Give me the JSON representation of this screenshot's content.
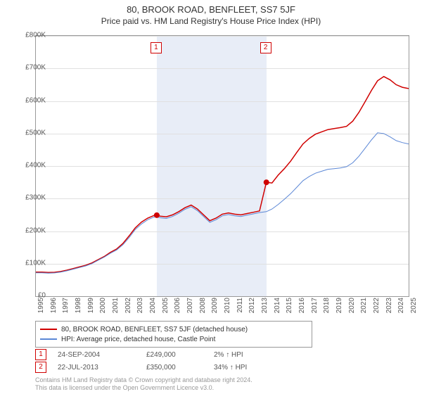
{
  "title": {
    "main": "80, BROOK ROAD, BENFLEET, SS7 5JF",
    "sub": "Price paid vs. HM Land Registry's House Price Index (HPI)"
  },
  "chart": {
    "type": "line",
    "x_start_year": 1995,
    "x_end_year": 2025,
    "y_min": 0,
    "y_max": 800000,
    "y_tick_step": 100000,
    "y_prefix": "£",
    "y_ticks": [
      "£0",
      "£100K",
      "£200K",
      "£300K",
      "£400K",
      "£500K",
      "£600K",
      "£700K",
      "£800K"
    ],
    "x_ticks": [
      "1995",
      "1996",
      "1997",
      "1998",
      "1999",
      "2000",
      "2001",
      "2002",
      "2003",
      "2004",
      "2005",
      "2006",
      "2007",
      "2008",
      "2009",
      "2010",
      "2011",
      "2012",
      "2013",
      "2014",
      "2015",
      "2016",
      "2017",
      "2018",
      "2019",
      "2020",
      "2021",
      "2022",
      "2023",
      "2024",
      "2025"
    ],
    "band_color": "#e8edf7",
    "grid_color": "#e0e0e0",
    "background_color": "#ffffff",
    "series": [
      {
        "name": "price_paid",
        "label": "80, BROOK ROAD, BENFLEET, SS7 5JF (detached house)",
        "color": "#d00000",
        "width": 1.5,
        "points": [
          [
            1995.0,
            74000
          ],
          [
            1995.5,
            74000
          ],
          [
            1996.0,
            73000
          ],
          [
            1996.5,
            73500
          ],
          [
            1997.0,
            76000
          ],
          [
            1997.5,
            80000
          ],
          [
            1998.0,
            85000
          ],
          [
            1998.5,
            90000
          ],
          [
            1999.0,
            95000
          ],
          [
            1999.5,
            102000
          ],
          [
            2000.0,
            112000
          ],
          [
            2000.5,
            122000
          ],
          [
            2001.0,
            135000
          ],
          [
            2001.5,
            145000
          ],
          [
            2002.0,
            162000
          ],
          [
            2002.5,
            185000
          ],
          [
            2003.0,
            210000
          ],
          [
            2003.5,
            228000
          ],
          [
            2004.0,
            240000
          ],
          [
            2004.5,
            248000
          ],
          [
            2004.73,
            249000
          ],
          [
            2005.0,
            246000
          ],
          [
            2005.5,
            244000
          ],
          [
            2006.0,
            250000
          ],
          [
            2006.5,
            260000
          ],
          [
            2007.0,
            272000
          ],
          [
            2007.5,
            280000
          ],
          [
            2008.0,
            268000
          ],
          [
            2008.5,
            250000
          ],
          [
            2009.0,
            232000
          ],
          [
            2009.5,
            240000
          ],
          [
            2010.0,
            252000
          ],
          [
            2010.5,
            256000
          ],
          [
            2011.0,
            252000
          ],
          [
            2011.5,
            250000
          ],
          [
            2012.0,
            254000
          ],
          [
            2012.5,
            258000
          ],
          [
            2013.0,
            262000
          ],
          [
            2013.55,
            350000
          ],
          [
            2014.0,
            348000
          ],
          [
            2014.5,
            372000
          ],
          [
            2015.0,
            392000
          ],
          [
            2015.5,
            415000
          ],
          [
            2016.0,
            442000
          ],
          [
            2016.5,
            468000
          ],
          [
            2017.0,
            485000
          ],
          [
            2017.5,
            498000
          ],
          [
            2018.0,
            505000
          ],
          [
            2018.5,
            512000
          ],
          [
            2019.0,
            515000
          ],
          [
            2019.5,
            518000
          ],
          [
            2020.0,
            522000
          ],
          [
            2020.5,
            538000
          ],
          [
            2021.0,
            565000
          ],
          [
            2021.5,
            598000
          ],
          [
            2022.0,
            632000
          ],
          [
            2022.5,
            662000
          ],
          [
            2023.0,
            675000
          ],
          [
            2023.5,
            665000
          ],
          [
            2024.0,
            650000
          ],
          [
            2024.5,
            642000
          ],
          [
            2025.0,
            638000
          ]
        ]
      },
      {
        "name": "hpi",
        "label": "HPI: Average price, detached house, Castle Point",
        "color": "#5b87d6",
        "width": 1,
        "points": [
          [
            1995.0,
            72000
          ],
          [
            1995.5,
            72000
          ],
          [
            1996.0,
            71000
          ],
          [
            1996.5,
            71500
          ],
          [
            1997.0,
            74000
          ],
          [
            1997.5,
            78000
          ],
          [
            1998.0,
            83000
          ],
          [
            1998.5,
            88000
          ],
          [
            1999.0,
            93000
          ],
          [
            1999.5,
            100000
          ],
          [
            2000.0,
            110000
          ],
          [
            2000.5,
            120000
          ],
          [
            2001.0,
            132000
          ],
          [
            2001.5,
            142000
          ],
          [
            2002.0,
            158000
          ],
          [
            2002.5,
            180000
          ],
          [
            2003.0,
            205000
          ],
          [
            2003.5,
            222000
          ],
          [
            2004.0,
            235000
          ],
          [
            2004.5,
            243000
          ],
          [
            2004.73,
            244000
          ],
          [
            2005.0,
            241000
          ],
          [
            2005.5,
            239000
          ],
          [
            2006.0,
            245000
          ],
          [
            2006.5,
            255000
          ],
          [
            2007.0,
            267000
          ],
          [
            2007.5,
            275000
          ],
          [
            2008.0,
            263000
          ],
          [
            2008.5,
            245000
          ],
          [
            2009.0,
            227000
          ],
          [
            2009.5,
            235000
          ],
          [
            2010.0,
            247000
          ],
          [
            2010.5,
            251000
          ],
          [
            2011.0,
            247000
          ],
          [
            2011.5,
            245000
          ],
          [
            2012.0,
            249000
          ],
          [
            2012.5,
            253000
          ],
          [
            2013.0,
            257000
          ],
          [
            2013.55,
            260000
          ],
          [
            2014.0,
            268000
          ],
          [
            2014.5,
            282000
          ],
          [
            2015.0,
            298000
          ],
          [
            2015.5,
            315000
          ],
          [
            2016.0,
            335000
          ],
          [
            2016.5,
            355000
          ],
          [
            2017.0,
            368000
          ],
          [
            2017.5,
            378000
          ],
          [
            2018.0,
            384000
          ],
          [
            2018.5,
            390000
          ],
          [
            2019.0,
            392000
          ],
          [
            2019.5,
            394000
          ],
          [
            2020.0,
            398000
          ],
          [
            2020.5,
            410000
          ],
          [
            2021.0,
            430000
          ],
          [
            2021.5,
            455000
          ],
          [
            2022.0,
            480000
          ],
          [
            2022.5,
            502000
          ],
          [
            2023.0,
            500000
          ],
          [
            2023.5,
            490000
          ],
          [
            2024.0,
            478000
          ],
          [
            2024.5,
            472000
          ],
          [
            2025.0,
            468000
          ]
        ]
      }
    ],
    "sale_markers": [
      {
        "num": "1",
        "year": 2004.73,
        "price": 249000
      },
      {
        "num": "2",
        "year": 2013.55,
        "price": 350000
      }
    ],
    "band": {
      "start_year": 2004.73,
      "end_year": 2013.55
    }
  },
  "sales": [
    {
      "num": "1",
      "date": "24-SEP-2004",
      "price": "£249,000",
      "diff": "2% ↑ HPI"
    },
    {
      "num": "2",
      "date": "22-JUL-2013",
      "price": "£350,000",
      "diff": "34% ↑ HPI"
    }
  ],
  "footnote": {
    "line1": "Contains HM Land Registry data © Crown copyright and database right 2024.",
    "line2": "This data is licensed under the Open Government Licence v3.0."
  }
}
